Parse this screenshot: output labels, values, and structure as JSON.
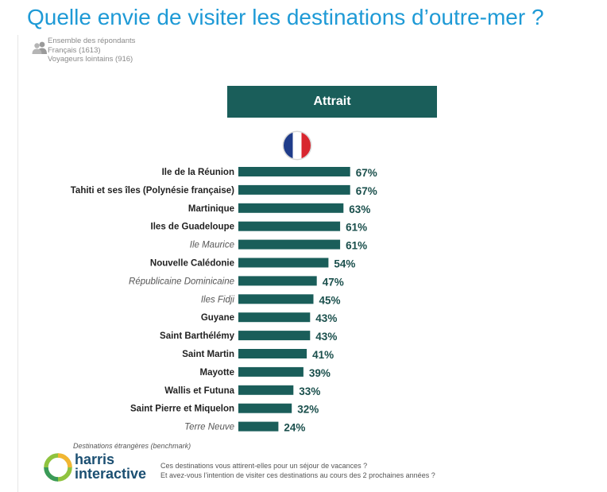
{
  "title": "Quelle envie de visiter les destinations d’outre-mer ?",
  "respondents": [
    "Ensemble des répondants",
    "Français (1613)",
    "Voyageurs lointains (916)"
  ],
  "column_header": "Attrait",
  "colors": {
    "title": "#1e9ad6",
    "bar": "#1a5e5a",
    "header_bg": "#1a5e5a",
    "flag_blue": "#1f3c8a",
    "flag_red": "#d8262f"
  },
  "chart_data": {
    "type": "bar",
    "orientation": "horizontal",
    "categories": [
      "Ile de la Réunion",
      "Tahiti et ses îles (Polynésie française)",
      "Martinique",
      "Iles de Guadeloupe",
      "Ile Maurice",
      "Nouvelle Calédonie",
      "Républicaine Dominicaine",
      "Iles Fidji",
      "Guyane",
      "Saint Barthélémy",
      "Saint Martin",
      "Mayotte",
      "Wallis et Futuna",
      "Saint Pierre et Miquelon",
      "Terre Neuve"
    ],
    "values": [
      67,
      67,
      63,
      61,
      61,
      54,
      47,
      45,
      43,
      43,
      41,
      39,
      33,
      32,
      24
    ],
    "value_labels": [
      "67%",
      "67%",
      "63%",
      "61%",
      "61%",
      "54%",
      "47%",
      "45%",
      "43%",
      "43%",
      "41%",
      "39%",
      "33%",
      "32%",
      "24%"
    ],
    "benchmark": [
      false,
      false,
      false,
      false,
      true,
      false,
      true,
      true,
      false,
      false,
      false,
      false,
      false,
      false,
      true
    ],
    "unit": "%"
  },
  "footer": {
    "benchmark_note": "Destinations étrangères (benchmark)",
    "logo_line1": "harris",
    "logo_line2": "interactive",
    "question_line1": "Ces destinations vous attirent-elles pour un séjour de vacances ?",
    "question_line2": "Et avez-vous l’intention de visiter ces destinations au cours des 2 prochaines années ?"
  }
}
